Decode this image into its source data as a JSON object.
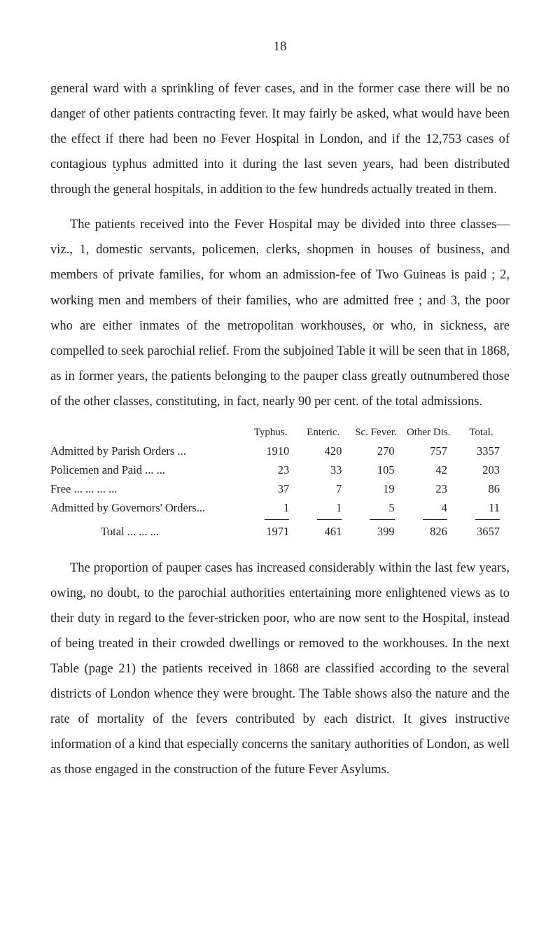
{
  "page_number": "18",
  "paragraphs": {
    "p1": "general ward with a sprinkling of fever cases, and in the former case there will be no danger of other patients contracting fever. It may fairly be asked, what would have been the effect if there had been no Fever Hospital in London, and if the 12,753 cases of contagious typhus admitted into it during the last seven years, had been dis­tributed through the general hospitals, in addition to the few hundreds actually treated in them.",
    "p2": "The patients received into the Fever Hospital may be divided into three classes—viz., 1, domestic servants, policemen, clerks, shopmen in houses of business, and members of private families, for whom an admission-fee of Two Guineas is paid ; 2, working men and members of their families, who are admitted free ; and 3, the poor who are either inmates of the metropolitan workhouses, or who, in sickness, are compelled to seek parochial relief. From the sub­joined Table it will be seen that in 1868, as in former years, the patients belonging to the pauper class greatly outnumbered those of the other classes, constituting, in fact, nearly 90 per cent. of the total admissions.",
    "p3": "The proportion of pauper cases has increased considerably within the last few years, owing, no doubt, to the parochial authorities enter­taining more enlightened views as to their duty in regard to the fever-stricken poor, who are now sent to the Hospital, instead of being treated in their crowded dwellings or removed to the workhouses. In the next Table (page 21) the patients received in 1868 are classified according to the several districts of London whence they were brought. The Table shows also the nature and the rate of mortality of the fevers contributed by each district. It gives instructive information of a kind that especially concerns the sanitary authorities of London, as well as those engaged in the construction of the future Fever Asylums."
  },
  "table": {
    "headers": {
      "c1": "Typhus.",
      "c2": "Enteric.",
      "c3": "Sc. Fever.",
      "c4": "Other Dis.",
      "c5": "Total."
    },
    "rows": [
      {
        "label": "Admitted by Parish Orders   ...",
        "c1": "1910",
        "c2": "420",
        "c3": "270",
        "c4": "757",
        "c5": "3357"
      },
      {
        "label": "Policemen and Paid      ...   ...",
        "c1": "23",
        "c2": "33",
        "c3": "105",
        "c4": "42",
        "c5": "203"
      },
      {
        "label": "Free        ...      ...      ...      ...",
        "c1": "37",
        "c2": "7",
        "c3": "19",
        "c4": "23",
        "c5": "86"
      },
      {
        "label": "Admitted by Governors' Orders...",
        "c1": "1",
        "c2": "1",
        "c3": "5",
        "c4": "4",
        "c5": "11"
      }
    ],
    "total": {
      "label": "Total  ...      ...      ...",
      "c1": "1971",
      "c2": "461",
      "c3": "399",
      "c4": "826",
      "c5": "3657"
    }
  }
}
